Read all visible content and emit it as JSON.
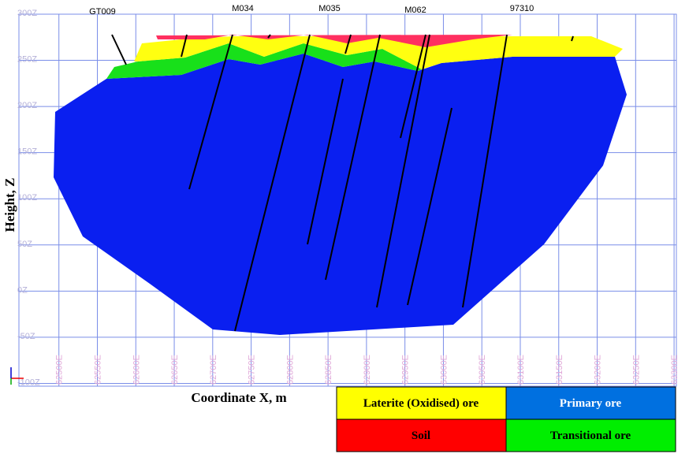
{
  "chart_data": {
    "type": "section",
    "xlabel": "Coordinate X, m",
    "ylabel": "Height, Z",
    "xlim": [
      62448,
      63303
    ],
    "ylim": [
      -103,
      300
    ],
    "xticks": [
      {
        "value": 62500,
        "label": "62500E"
      },
      {
        "value": 62550,
        "label": "62550E"
      },
      {
        "value": 62600,
        "label": "62600E"
      },
      {
        "value": 62650,
        "label": "62650E"
      },
      {
        "value": 62700,
        "label": "62700E"
      },
      {
        "value": 62750,
        "label": "62750E"
      },
      {
        "value": 62800,
        "label": "62800E"
      },
      {
        "value": 62850,
        "label": "62850E"
      },
      {
        "value": 62900,
        "label": "62900E"
      },
      {
        "value": 62950,
        "label": "62950E"
      },
      {
        "value": 63000,
        "label": "63000E"
      },
      {
        "value": 63050,
        "label": "63050E"
      },
      {
        "value": 63100,
        "label": "63100E"
      },
      {
        "value": 63150,
        "label": "63150E"
      },
      {
        "value": 63200,
        "label": "63200E"
      },
      {
        "value": 63250,
        "label": "63250E"
      },
      {
        "value": 63300,
        "label": "63300E"
      }
    ],
    "yticks": [
      {
        "value": 300,
        "label": "300Z"
      },
      {
        "value": 250,
        "label": "250Z"
      },
      {
        "value": 200,
        "label": "200Z"
      },
      {
        "value": 150,
        "label": "150Z"
      },
      {
        "value": 100,
        "label": "100Z"
      },
      {
        "value": 50,
        "label": "50Z"
      },
      {
        "value": 0,
        "label": "0Z"
      },
      {
        "value": -50,
        "label": "-50Z"
      },
      {
        "value": -100,
        "label": "-100Z"
      }
    ],
    "grid": true,
    "drillholes": [
      "GT009",
      "M034",
      "M035",
      "M062",
      "97310"
    ],
    "legend": [
      {
        "name": "Laterite (Oxidised) ore",
        "color": "#ffff00"
      },
      {
        "name": "Primary ore",
        "color": "#0070e0"
      },
      {
        "name": "Soil",
        "color": "#ff0000"
      },
      {
        "name": "Transitional ore",
        "color": "#00ee00"
      }
    ]
  }
}
